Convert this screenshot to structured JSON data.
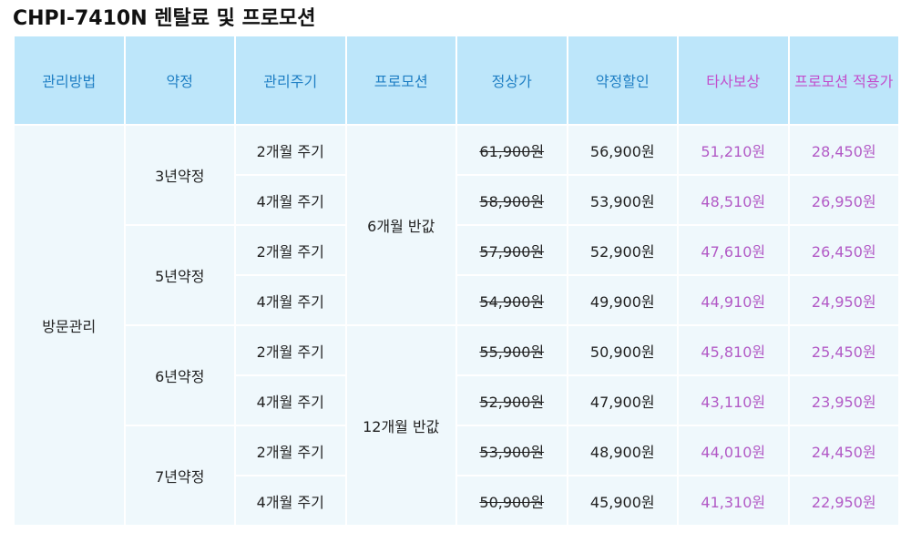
{
  "header": {
    "title": "CHPI-7410N 렌탈료 및 프로모션"
  },
  "table": {
    "columns": [
      "관리방법",
      "약정",
      "관리주기",
      "프로모션",
      "정상가",
      "약정할인",
      "타사보상",
      "프로모션 적용가"
    ],
    "method": "방문관리",
    "promotions": [
      "6개월 반값",
      "12개월 반값"
    ],
    "groups": [
      {
        "contract": "3년약정",
        "rows": [
          {
            "cycle": "2개월 주기",
            "regular": "61,900원",
            "discount": "56,900원",
            "competitor": "51,210원",
            "promo_price": "28,450원"
          },
          {
            "cycle": "4개월 주기",
            "regular": "58,900원",
            "discount": "53,900원",
            "competitor": "48,510원",
            "promo_price": "26,950원"
          }
        ]
      },
      {
        "contract": "5년약정",
        "rows": [
          {
            "cycle": "2개월 주기",
            "regular": "57,900원",
            "discount": "52,900원",
            "competitor": "47,610원",
            "promo_price": "26,450원"
          },
          {
            "cycle": "4개월 주기",
            "regular": "54,900원",
            "discount": "49,900원",
            "competitor": "44,910원",
            "promo_price": "24,950원"
          }
        ]
      },
      {
        "contract": "6년약정",
        "rows": [
          {
            "cycle": "2개월 주기",
            "regular": "55,900원",
            "discount": "50,900원",
            "competitor": "45,810원",
            "promo_price": "25,450원"
          },
          {
            "cycle": "4개월 주기",
            "regular": "52,900원",
            "discount": "47,900원",
            "competitor": "43,110원",
            "promo_price": "23,950원"
          }
        ]
      },
      {
        "contract": "7년약정",
        "rows": [
          {
            "cycle": "2개월 주기",
            "regular": "53,900원",
            "discount": "48,900원",
            "competitor": "44,010원",
            "promo_price": "24,450원"
          },
          {
            "cycle": "4개월 주기",
            "regular": "50,900원",
            "discount": "45,900원",
            "competitor": "41,310원",
            "promo_price": "22,950원"
          }
        ]
      }
    ]
  }
}
